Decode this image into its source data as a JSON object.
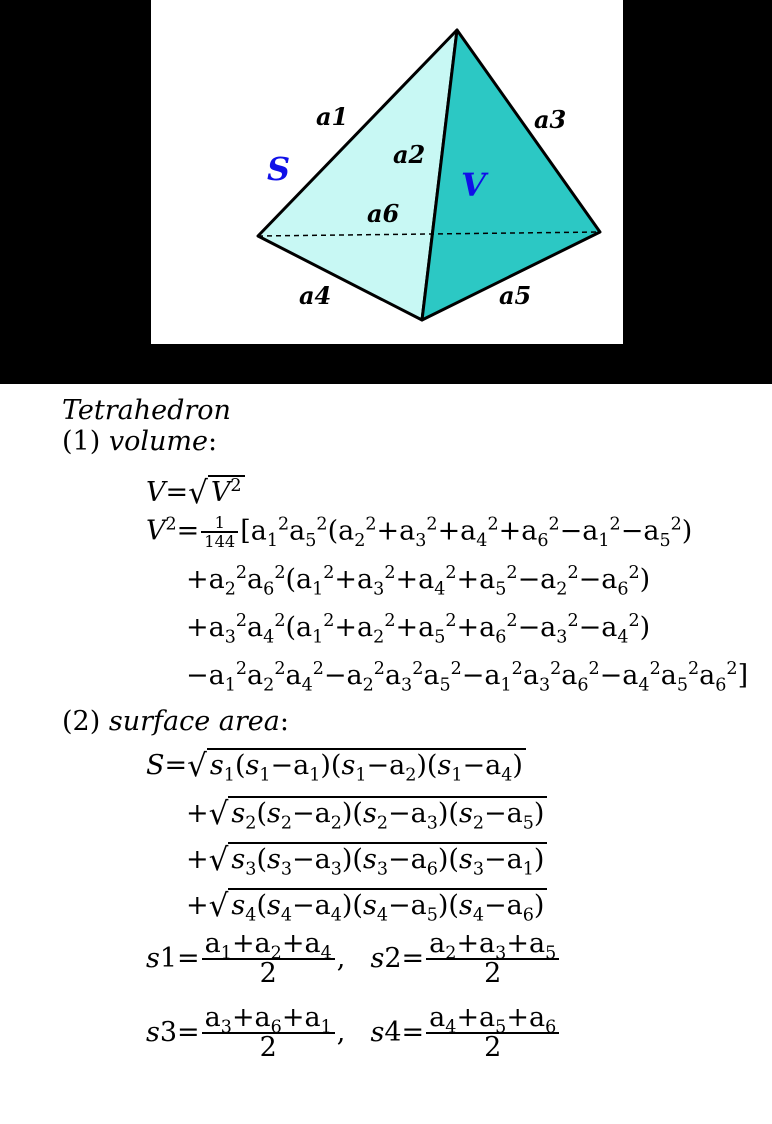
{
  "figure": {
    "edge_labels": {
      "a1": "a1",
      "a2": "a2",
      "a3": "a3",
      "a4": "a4",
      "a5": "a5",
      "a6": "a6"
    },
    "face_labels": {
      "surface": "S",
      "volume": "V"
    },
    "colors": {
      "left_face": "#c8f8f4",
      "right_face": "#2cc8c4",
      "face_label": "#1010e8",
      "edge": "#000000"
    }
  },
  "formulas": {
    "title": "Tetrahedron",
    "volume_heading": {
      "number": "(1)",
      "label": "volume"
    },
    "volume_eq": "V = √V²",
    "v2_line1": "V² = 1/144 [a₁²a₅²(a₂²+a₃²+a₄²+a₆²−a₁²−a₅²)",
    "v2_line2": "+a₂²a₆²(a₁²+a₃²+a₄²+a₅²−a₂²−a₆²)",
    "v2_line3": "+a₃²a₄²(a₁²+a₂²+a₅²+a₆²−a₃²−a₄²)",
    "v2_line4": "−a₁²a₂²a₄²−a₂²a₃²a₅²−a₁²a₃²a₆²−a₄²a₅²a₆²]",
    "surface_heading": {
      "number": "(2)",
      "label": "surface area"
    },
    "s_line1": "S = √(s₁(s₁−a₁)(s₁−a₂)(s₁−a₄))",
    "s_line2": "+√(s₂(s₂−a₂)(s₂−a₃)(s₂−a₅))",
    "s_line3": "+√(s₃(s₃−a₃)(s₃−a₆)(s₃−a₁))",
    "s_line4": "+√(s₄(s₄−a₄)(s₄−a₅)(s₄−a₆))",
    "s1_def": "s1 = (a₁+a₂+a₄)/2",
    "s2_def": "s2 = (a₂+a₃+a₅)/2",
    "s3_def": "s3 = (a₃+a₆+a₁)/2",
    "s4_def": "s4 = (a₄+a₅+a₆)/2"
  }
}
